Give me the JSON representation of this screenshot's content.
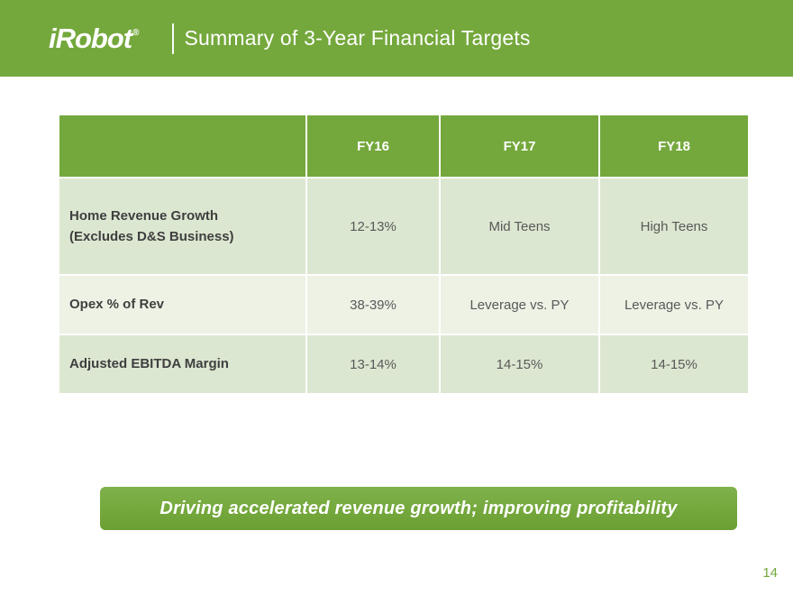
{
  "header": {
    "logo_text": "iRobot",
    "registered_mark": "®",
    "title": "Summary of 3-Year Financial Targets"
  },
  "table": {
    "header_cells": [
      "",
      "FY16",
      "FY17",
      "FY18"
    ],
    "rows": [
      {
        "label": "Home Revenue Growth\n(Excludes D&S Business)",
        "values": [
          "12-13%",
          "Mid Teens",
          "High Teens"
        ]
      },
      {
        "label": "Opex % of Rev",
        "values": [
          "38-39%",
          "Leverage vs. PY",
          "Leverage vs. PY"
        ]
      },
      {
        "label": "Adjusted EBITDA Margin",
        "values": [
          "13-14%",
          "14-15%",
          "14-15%"
        ]
      }
    ]
  },
  "banner": {
    "text": "Driving accelerated revenue growth; improving profitability"
  },
  "page": {
    "number": "14"
  },
  "colors": {
    "brand_green": "#74A83C",
    "row_shade_dark": "#DCE7D1",
    "row_shade_light": "#EDF2E5"
  }
}
